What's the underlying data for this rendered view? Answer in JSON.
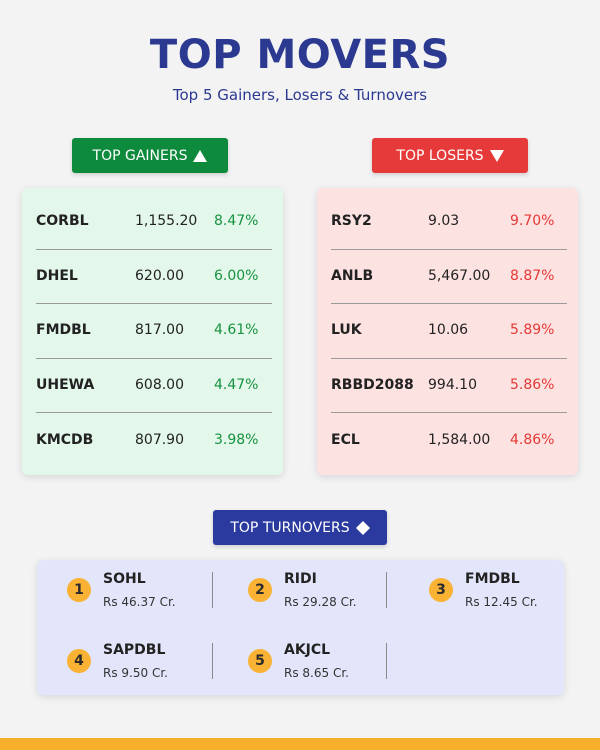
{
  "header": {
    "title": "TOP MOVERS",
    "subtitle": "Top 5 Gainers, Losers & Turnovers"
  },
  "gainers": {
    "label": "TOP GAINERS",
    "rows": [
      [
        "CORBL",
        "1,155.20",
        "8.47%"
      ],
      [
        "DHEL",
        "620.00",
        "6.00%"
      ],
      [
        "FMDBL",
        "817.00",
        "4.61%"
      ],
      [
        "UHEWA",
        "608.00",
        "4.47%"
      ],
      [
        "KMCDB",
        "807.90",
        "3.98%"
      ]
    ]
  },
  "losers": {
    "label": "TOP LOSERS",
    "rows": [
      [
        "RSY2",
        "9.03",
        "9.70%"
      ],
      [
        "ANLB",
        "5,467.00",
        "8.87%"
      ],
      [
        "LUK",
        "10.06",
        "5.89%"
      ],
      [
        "RBBD2088",
        "994.10",
        "5.86%"
      ],
      [
        "ECL",
        "1,584.00",
        "4.86%"
      ]
    ]
  },
  "turnovers": {
    "label": "TOP TURNOVERS",
    "items": [
      {
        "rank": "1",
        "symbol": "SOHL",
        "amount": "Rs 46.37 Cr."
      },
      {
        "rank": "2",
        "symbol": "RIDI",
        "amount": "Rs 29.28 Cr."
      },
      {
        "rank": "3",
        "symbol": "FMDBL",
        "amount": "Rs 12.45 Cr."
      },
      {
        "rank": "4",
        "symbol": "SAPDBL",
        "amount": "Rs 9.50 Cr."
      },
      {
        "rank": "5",
        "symbol": "AKJCL",
        "amount": "Rs 8.65 Cr."
      }
    ]
  }
}
